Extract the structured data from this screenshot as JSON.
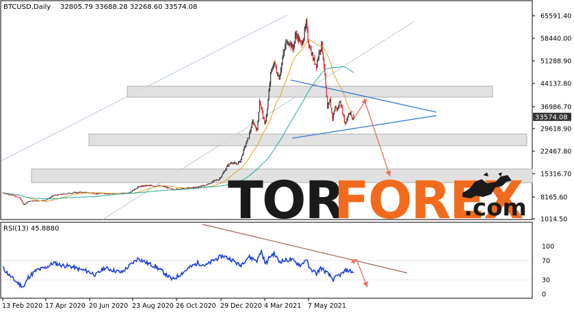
{
  "chart_data": [
    {
      "type": "candlestick",
      "symbol_header": "BTCUSD,Daily",
      "ohlc_header": "32805.79 33688.28 32268.60 33574.08",
      "y_ticks": [
        "65591.40",
        "58440.00",
        "51288.90",
        "44137.80",
        "36986.70",
        "29618.90",
        "22467.80",
        "15316.70",
        "8165.60",
        "1014.50"
      ],
      "y_tick_values": [
        65591.4,
        58440.0,
        51288.9,
        44137.8,
        36986.7,
        29618.9,
        22467.8,
        15316.7,
        8165.6,
        1014.5
      ],
      "ylim": [
        1014.5,
        65591.4
      ],
      "current_price_label": "33574.08",
      "current_price": 33574.08,
      "x_ticks": [
        "13 Feb 2020",
        "17 Apr 2020",
        "20 Jun 2020",
        "23 Aug 2020",
        "26 Oct 2020",
        "29 Dec 2020",
        "4 Mar 2021",
        "7 May 2021"
      ],
      "path_points": [
        [
          0,
          9500
        ],
        [
          10,
          8800
        ],
        [
          20,
          7900
        ],
        [
          25,
          5500
        ],
        [
          30,
          6800
        ],
        [
          40,
          6900
        ],
        [
          50,
          7100
        ],
        [
          60,
          8600
        ],
        [
          70,
          9000
        ],
        [
          80,
          9400
        ],
        [
          90,
          9600
        ],
        [
          100,
          9500
        ],
        [
          110,
          9200
        ],
        [
          120,
          9300
        ],
        [
          130,
          9200
        ],
        [
          140,
          9200
        ],
        [
          150,
          9600
        ],
        [
          160,
          11300
        ],
        [
          170,
          11700
        ],
        [
          180,
          11600
        ],
        [
          190,
          11400
        ],
        [
          200,
          10500
        ],
        [
          210,
          10700
        ],
        [
          220,
          10900
        ],
        [
          230,
          11300
        ],
        [
          240,
          11800
        ],
        [
          250,
          13200
        ],
        [
          255,
          13600
        ],
        [
          260,
          15500
        ],
        [
          265,
          17800
        ],
        [
          270,
          19000
        ],
        [
          275,
          18300
        ],
        [
          280,
          19200
        ],
        [
          285,
          23500
        ],
        [
          290,
          27000
        ],
        [
          295,
          32000
        ],
        [
          300,
          29000
        ],
        [
          303,
          39000
        ],
        [
          306,
          35000
        ],
        [
          309,
          31000
        ],
        [
          312,
          36000
        ],
        [
          316,
          47000
        ],
        [
          320,
          51000
        ],
        [
          323,
          48000
        ],
        [
          326,
          46000
        ],
        [
          330,
          52000
        ],
        [
          334,
          57000
        ],
        [
          338,
          57500
        ],
        [
          342,
          55000
        ],
        [
          346,
          60000
        ],
        [
          349,
          58000
        ],
        [
          352,
          56500
        ],
        [
          355,
          59000
        ],
        [
          358,
          63000
        ],
        [
          360,
          58000
        ],
        [
          363,
          55000
        ],
        [
          366,
          52000
        ],
        [
          370,
          50000
        ],
        [
          373,
          54000
        ],
        [
          376,
          56500
        ],
        [
          379,
          50000
        ],
        [
          381,
          43000
        ],
        [
          383,
          36000
        ],
        [
          386,
          39000
        ],
        [
          389,
          33000
        ],
        [
          392,
          37000
        ],
        [
          395,
          36000
        ],
        [
          398,
          39000
        ],
        [
          401,
          35000
        ],
        [
          404,
          31000
        ],
        [
          407,
          34000
        ],
        [
          410,
          35500
        ],
        [
          412,
          32500
        ],
        [
          414,
          33574
        ]
      ],
      "annotations": [
        "resistance zone 44137.80",
        "support zone 24500",
        "support zone 15316.70",
        "triangle",
        "forecast up arrow",
        "forecast down arrow"
      ]
    },
    {
      "type": "line",
      "indicator_label": "RSI(13) 45.8880",
      "y_ticks": [
        "100",
        "70",
        "30",
        "0"
      ],
      "y_tick_values": [
        100,
        70,
        30,
        0
      ],
      "ylim": [
        0,
        100
      ],
      "path_points": [
        [
          0,
          55
        ],
        [
          10,
          35
        ],
        [
          20,
          20
        ],
        [
          25,
          15
        ],
        [
          30,
          35
        ],
        [
          40,
          50
        ],
        [
          50,
          55
        ],
        [
          60,
          65
        ],
        [
          70,
          60
        ],
        [
          80,
          58
        ],
        [
          90,
          52
        ],
        [
          100,
          48
        ],
        [
          110,
          40
        ],
        [
          120,
          55
        ],
        [
          130,
          50
        ],
        [
          140,
          45
        ],
        [
          150,
          60
        ],
        [
          160,
          75
        ],
        [
          170,
          65
        ],
        [
          180,
          58
        ],
        [
          190,
          45
        ],
        [
          200,
          30
        ],
        [
          210,
          42
        ],
        [
          220,
          55
        ],
        [
          230,
          65
        ],
        [
          240,
          60
        ],
        [
          250,
          72
        ],
        [
          260,
          80
        ],
        [
          270,
          72
        ],
        [
          280,
          60
        ],
        [
          290,
          78
        ],
        [
          300,
          70
        ],
        [
          305,
          90
        ],
        [
          310,
          62
        ],
        [
          315,
          78
        ],
        [
          320,
          85
        ],
        [
          326,
          68
        ],
        [
          332,
          70
        ],
        [
          340,
          72
        ],
        [
          346,
          66
        ],
        [
          352,
          60
        ],
        [
          358,
          74
        ],
        [
          362,
          52
        ],
        [
          366,
          50
        ],
        [
          370,
          42
        ],
        [
          375,
          55
        ],
        [
          380,
          48
        ],
        [
          385,
          40
        ],
        [
          390,
          30
        ],
        [
          395,
          38
        ],
        [
          400,
          42
        ],
        [
          405,
          50
        ],
        [
          410,
          48
        ],
        [
          414,
          45.888
        ]
      ]
    }
  ],
  "colors": {
    "bull_candle": "#333333",
    "bear_candle": "#d42a2a",
    "ma_fast": "#e0a020",
    "ma_slow": "#1fa6a0",
    "channel": "#b8c8d8",
    "zone_fill": "#dcdcdc",
    "zone_border": "#b0b0b0",
    "triangle": "#3a7bd5",
    "arrow": "#f07060",
    "rsi": "#1a3fd6",
    "rsi_trend": "#a06050",
    "price_tag_bg": "#333333",
    "logo_black": "#1a1a1a",
    "logo_orange": "#f26b1d"
  },
  "logo": {
    "part1": "TOR",
    "part2": "FOREX",
    "suffix": ".com",
    "icon": "bull-bear-icon"
  }
}
